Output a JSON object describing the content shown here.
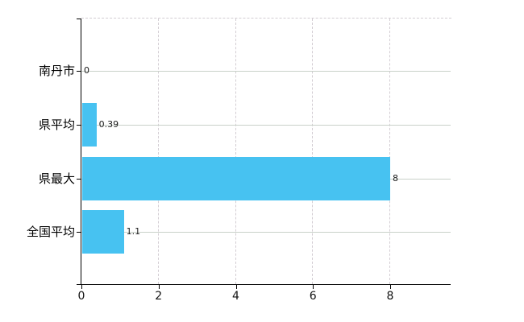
{
  "chart_data": {
    "type": "bar",
    "orientation": "horizontal",
    "title": "",
    "categories": [
      "南丹市",
      "県平均",
      "県最大",
      "全国平均"
    ],
    "values": [
      0,
      0.39,
      8,
      1.1
    ],
    "value_labels": [
      "0",
      "0.39",
      "8",
      "1.1"
    ],
    "x_ticks": [
      0,
      2,
      4,
      6,
      8
    ],
    "x_tick_labels": [
      "0",
      "2",
      "4",
      "6",
      "8"
    ],
    "xlim": [
      0,
      9.55
    ],
    "grid": true,
    "legend_position": "none",
    "colors": {
      "bar": "#47c2f1",
      "horizontal_grid": "#c9d1c9",
      "vertical_grid": "#d3cdd3",
      "axis": "#000000",
      "background": "#ffffff",
      "label_text": "#1a1a1a"
    }
  }
}
